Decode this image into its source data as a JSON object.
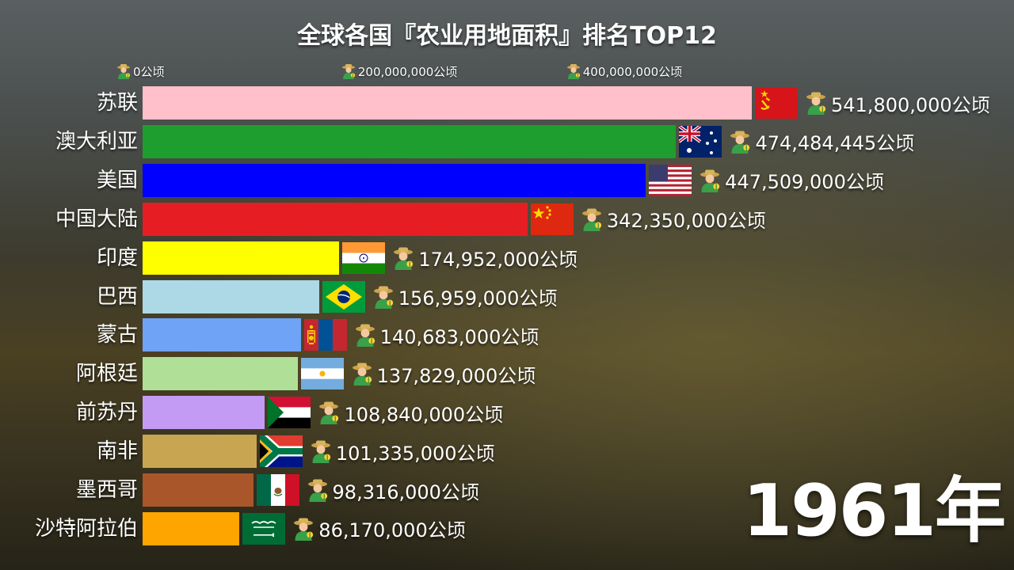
{
  "chart_data": {
    "type": "bar",
    "orientation": "horizontal",
    "title": "全球各国『农业用地面积』排名TOP12",
    "year_label": "1961年",
    "unit": "公顷",
    "ticks": [
      {
        "value": 0,
        "label": "0公顷"
      },
      {
        "value": 200000000,
        "label": "200,000,000公顷"
      },
      {
        "value": 400000000,
        "label": "400,000,000公顷"
      }
    ],
    "xlim": [
      0,
      541800000
    ],
    "categories": [
      "苏联",
      "澳大利亚",
      "美国",
      "中国大陆",
      "印度",
      "巴西",
      "蒙古",
      "阿根廷",
      "前苏丹",
      "南非",
      "墨西哥",
      "沙特阿拉伯"
    ],
    "values": [
      541800000,
      474484445,
      447509000,
      342350000,
      174952000,
      156959000,
      140683000,
      137829000,
      108840000,
      101335000,
      98316000,
      86170000
    ],
    "value_labels": [
      "541,800,000公顷",
      "474,484,445公顷",
      "447,509,000公顷",
      "342,350,000公顷",
      "174,952,000公顷",
      "156,959,000公顷",
      "140,683,000公顷",
      "137,829,000公顷",
      "108,840,000公顷",
      "101,335,000公顷",
      "98,316,000公顷",
      "86,170,000公顷"
    ],
    "bar_colors": [
      "#ffc0cb",
      "#1e9e2e",
      "#0000ff",
      "#e61e24",
      "#ffff00",
      "#add8e6",
      "#6fa3f5",
      "#b0e098",
      "#c39bf5",
      "#c8a550",
      "#a9562a",
      "#ffa500"
    ],
    "flags": [
      "soviet-union-flag-icon",
      "australia-flag-icon",
      "usa-flag-icon",
      "china-flag-icon",
      "india-flag-icon",
      "brazil-flag-icon",
      "mongolia-flag-icon",
      "argentina-flag-icon",
      "sudan-flag-icon",
      "south-africa-flag-icon",
      "mexico-flag-icon",
      "saudi-arabia-flag-icon"
    ],
    "value_icon": "farmer-emoji-icon",
    "grid": false,
    "legend": "none"
  }
}
